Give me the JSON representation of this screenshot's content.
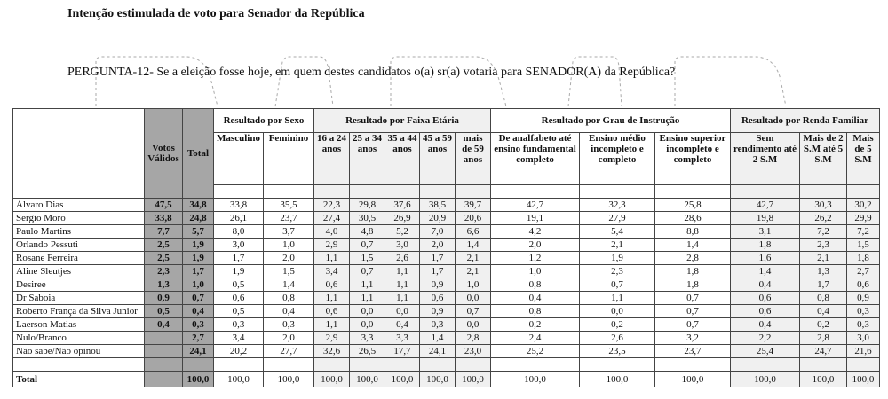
{
  "title": "Intenção estimulada de voto para Senador da República",
  "question": "PERGUNTA-12- Se a eleição fosse hoje, em quem destes candidatos o(a) sr(a) votaria para SENADOR(A) da República?",
  "headers": {
    "votos_validos": "Votos Válidos",
    "total": "Total",
    "groups": [
      {
        "label": "Resultado por Sexo",
        "columns": [
          "Masculino",
          "Feminino"
        ]
      },
      {
        "label": "Resultado por Faixa Etária",
        "columns": [
          "16 a 24 anos",
          "25 a 34 anos",
          "35 a 44 anos",
          "45 a 59 anos",
          "mais de 59 anos"
        ]
      },
      {
        "label": "Resultado por Grau de Instrução",
        "columns": [
          "De analfabeto até ensino fundamental completo",
          "Ensino médio incompleto e completo",
          "Ensino superior incompleto e completo"
        ]
      },
      {
        "label": "Resultado por Renda Familiar",
        "columns": [
          "Sem rendimento até 2 S.M",
          "Mais de 2 S.M até 5 S.M",
          "Mais de 5 S.M"
        ]
      }
    ]
  },
  "rows": [
    {
      "name": "Álvaro Dias",
      "validos": "47,5",
      "total": "34,8",
      "values": [
        "33,8",
        "35,5",
        "22,3",
        "29,8",
        "37,6",
        "38,5",
        "39,7",
        "42,7",
        "32,3",
        "25,8",
        "42,7",
        "30,3",
        "30,2"
      ]
    },
    {
      "name": "Sergio Moro",
      "validos": "33,8",
      "total": "24,8",
      "values": [
        "26,1",
        "23,7",
        "27,4",
        "30,5",
        "26,9",
        "20,9",
        "20,6",
        "19,1",
        "27,9",
        "28,6",
        "19,8",
        "26,2",
        "29,9"
      ]
    },
    {
      "name": "Paulo Martins",
      "validos": "7,7",
      "total": "5,7",
      "values": [
        "8,0",
        "3,7",
        "4,0",
        "4,8",
        "5,2",
        "7,0",
        "6,6",
        "4,2",
        "5,4",
        "8,8",
        "3,1",
        "7,2",
        "7,2"
      ]
    },
    {
      "name": "Orlando Pessuti",
      "validos": "2,5",
      "total": "1,9",
      "values": [
        "3,0",
        "1,0",
        "2,9",
        "0,7",
        "3,0",
        "2,0",
        "1,4",
        "2,0",
        "2,1",
        "1,4",
        "1,8",
        "2,3",
        "1,5"
      ]
    },
    {
      "name": "Rosane Ferreira",
      "validos": "2,5",
      "total": "1,9",
      "values": [
        "1,7",
        "2,0",
        "1,1",
        "1,5",
        "2,6",
        "1,7",
        "2,1",
        "1,2",
        "1,9",
        "2,8",
        "1,6",
        "2,1",
        "1,8"
      ]
    },
    {
      "name": "Aline Sleutjes",
      "validos": "2,3",
      "total": "1,7",
      "values": [
        "1,9",
        "1,5",
        "3,4",
        "0,7",
        "1,1",
        "1,7",
        "2,1",
        "1,0",
        "2,3",
        "1,8",
        "1,4",
        "1,3",
        "2,7"
      ]
    },
    {
      "name": "Desiree",
      "validos": "1,3",
      "total": "1,0",
      "values": [
        "0,5",
        "1,4",
        "0,6",
        "1,1",
        "1,1",
        "0,9",
        "1,0",
        "0,8",
        "0,7",
        "1,8",
        "0,4",
        "1,7",
        "0,6"
      ]
    },
    {
      "name": "Dr Saboia",
      "validos": "0,9",
      "total": "0,7",
      "values": [
        "0,6",
        "0,8",
        "1,1",
        "1,1",
        "1,1",
        "0,6",
        "0,0",
        "0,4",
        "1,1",
        "0,7",
        "0,6",
        "0,8",
        "0,9"
      ]
    },
    {
      "name": "Roberto França da Silva Junior",
      "validos": "0,5",
      "total": "0,4",
      "values": [
        "0,5",
        "0,4",
        "0,6",
        "0,0",
        "0,0",
        "0,9",
        "0,7",
        "0,8",
        "0,0",
        "0,7",
        "0,6",
        "0,4",
        "0,3"
      ]
    },
    {
      "name": "Laerson Matias",
      "validos": "0,4",
      "total": "0,3",
      "values": [
        "0,3",
        "0,3",
        "1,1",
        "0,0",
        "0,4",
        "0,3",
        "0,0",
        "0,2",
        "0,2",
        "0,7",
        "0,4",
        "0,2",
        "0,3"
      ]
    },
    {
      "name": "Nulo/Branco",
      "validos": "",
      "total": "2,7",
      "values": [
        "3,4",
        "2,0",
        "2,9",
        "3,3",
        "3,3",
        "1,4",
        "2,8",
        "2,4",
        "2,6",
        "3,2",
        "2,2",
        "2,8",
        "3,0"
      ]
    },
    {
      "name": "Não sabe/Não opinou",
      "validos": "",
      "total": "24,1",
      "values": [
        "20,2",
        "27,7",
        "32,6",
        "26,5",
        "17,7",
        "24,1",
        "23,0",
        "25,2",
        "23,5",
        "23,7",
        "25,4",
        "24,7",
        "21,6"
      ]
    }
  ],
  "total_row": {
    "name": "Total",
    "validos": "",
    "total": "100,0",
    "values": [
      "100,0",
      "100,0",
      "100,0",
      "100,0",
      "100,0",
      "100,0",
      "100,0",
      "100,0",
      "100,0",
      "100,0",
      "100,0",
      "100,0",
      "100,0"
    ]
  },
  "colors": {
    "dark_column": "#a6a6a6",
    "light_column": "#f0f0f0"
  }
}
